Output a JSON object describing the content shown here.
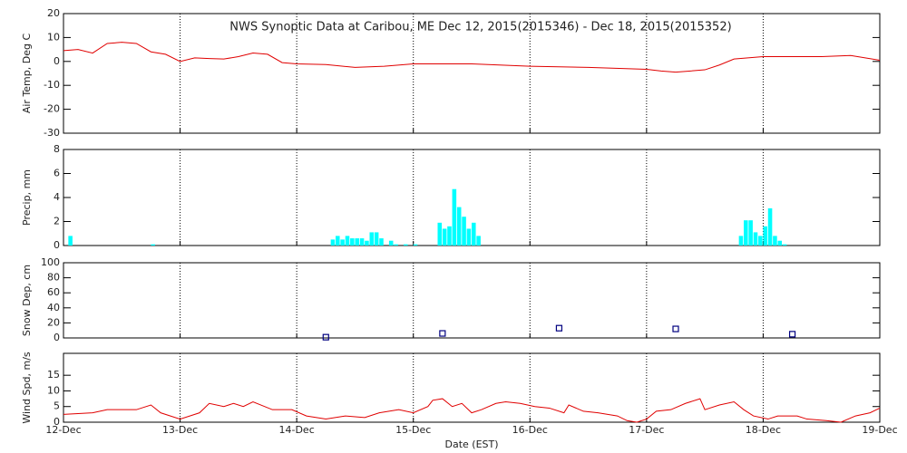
{
  "chart_data": [
    {
      "type": "line",
      "title": "NWS Synoptic Data at Caribou, ME   Dec 12, 2015(2015346) - Dec 18, 2015(2015352)",
      "ylabel": "Air Temp, Deg C",
      "color": "#e00000",
      "xlim": [
        0,
        168
      ],
      "xticks": [
        0,
        24,
        48,
        72,
        96,
        120,
        144,
        168
      ],
      "ylim": [
        -30,
        20
      ],
      "yticks": [
        -30,
        -20,
        -10,
        0,
        10,
        20
      ],
      "grid": true,
      "x": [
        0,
        3,
        6,
        9,
        12,
        15,
        18,
        21,
        24,
        27,
        30,
        33,
        36,
        39,
        42,
        45,
        48,
        54,
        60,
        66,
        72,
        84,
        96,
        108,
        120,
        123,
        126,
        132,
        135,
        138,
        144,
        156,
        162,
        168
      ],
      "values": [
        4.5,
        5,
        3.5,
        7.5,
        8,
        7.5,
        4,
        3,
        0,
        1.5,
        1.2,
        1,
        2,
        3.5,
        3,
        -0.5,
        -1,
        -1.3,
        -2.5,
        -2,
        -1,
        -1,
        -2,
        -2.5,
        -3.3,
        -4,
        -4.5,
        -3.5,
        -1.5,
        1,
        2,
        2,
        2.5,
        0.5
      ]
    },
    {
      "type": "bar",
      "ylabel": "Precip, mm",
      "color": "#00ffff",
      "xlim": [
        0,
        168
      ],
      "xticks": [
        0,
        24,
        48,
        72,
        96,
        120,
        144,
        168
      ],
      "ylim": [
        0,
        8
      ],
      "yticks": [
        0,
        2,
        4,
        6,
        8
      ],
      "grid": true,
      "x": [
        1,
        18,
        55,
        56,
        57,
        58,
        59,
        60,
        61,
        62,
        63,
        64,
        65,
        67,
        68,
        70,
        72,
        77,
        78,
        79,
        80,
        81,
        82,
        83,
        84,
        85,
        139,
        140,
        141,
        142,
        143,
        144,
        145,
        146,
        147,
        148
      ],
      "values": [
        0.8,
        0.1,
        0.5,
        0.8,
        0.5,
        0.8,
        0.6,
        0.6,
        0.6,
        0.4,
        1.1,
        1.1,
        0.6,
        0.4,
        0.1,
        0.1,
        0.1,
        1.9,
        1.4,
        1.6,
        4.7,
        3.2,
        2.4,
        1.4,
        1.9,
        0.8,
        0.8,
        2.1,
        2.1,
        1.1,
        0.8,
        1.6,
        3.1,
        0.8,
        0.4,
        0.1
      ]
    },
    {
      "type": "scatter",
      "ylabel": "Snow Dep, cm",
      "color": "#000080",
      "xlim": [
        0,
        168
      ],
      "xticks": [
        0,
        24,
        48,
        72,
        96,
        120,
        144,
        168
      ],
      "ylim": [
        0,
        100
      ],
      "yticks": [
        0,
        20,
        40,
        60,
        80,
        100
      ],
      "grid": true,
      "x": [
        54,
        78,
        102,
        126,
        150
      ],
      "values": [
        1,
        6,
        13,
        12,
        5
      ]
    },
    {
      "type": "line",
      "ylabel": "Wind Spd, m/s",
      "xlabel": "Date (EST)",
      "color": "#e00000",
      "xlim": [
        0,
        168
      ],
      "xticks": [
        {
          "value": 0,
          "label": "12-Dec"
        },
        {
          "value": 24,
          "label": "13-Dec"
        },
        {
          "value": 48,
          "label": "14-Dec"
        },
        {
          "value": 72,
          "label": "15-Dec"
        },
        {
          "value": 96,
          "label": "16-Dec"
        },
        {
          "value": 120,
          "label": "17-Dec"
        },
        {
          "value": 144,
          "label": "18-Dec"
        },
        {
          "value": 168,
          "label": "19-Dec"
        }
      ],
      "ylim": [
        0,
        22
      ],
      "yticks": [
        0,
        5,
        10,
        15
      ],
      "grid": true,
      "x": [
        0,
        6,
        9,
        15,
        18,
        20,
        22,
        24,
        28,
        30,
        33,
        35,
        37,
        39,
        43,
        47,
        50,
        54,
        58,
        62,
        65,
        69,
        72,
        75,
        76,
        78,
        80,
        82,
        84,
        86,
        89,
        91,
        94,
        97,
        100,
        103,
        104,
        107,
        110,
        114,
        116,
        118,
        120,
        122,
        125,
        128,
        131,
        132,
        135,
        138,
        140,
        142,
        145,
        147,
        151,
        153,
        157,
        160,
        163,
        166,
        168
      ],
      "values": [
        2.5,
        3,
        4,
        4,
        5.5,
        3,
        2,
        1,
        3,
        6,
        5,
        6,
        5,
        6.5,
        4,
        4,
        2,
        1,
        2,
        1.5,
        3,
        4,
        3,
        5,
        7,
        7.5,
        5,
        6,
        3,
        4,
        6,
        6.5,
        6,
        5,
        4.5,
        3,
        5.5,
        3.5,
        3,
        2,
        0.5,
        0,
        1,
        3.5,
        4,
        6,
        7.5,
        4,
        5.5,
        6.5,
        4,
        2,
        1,
        2,
        2,
        1,
        0.5,
        0,
        2,
        3,
        4.5
      ]
    }
  ]
}
